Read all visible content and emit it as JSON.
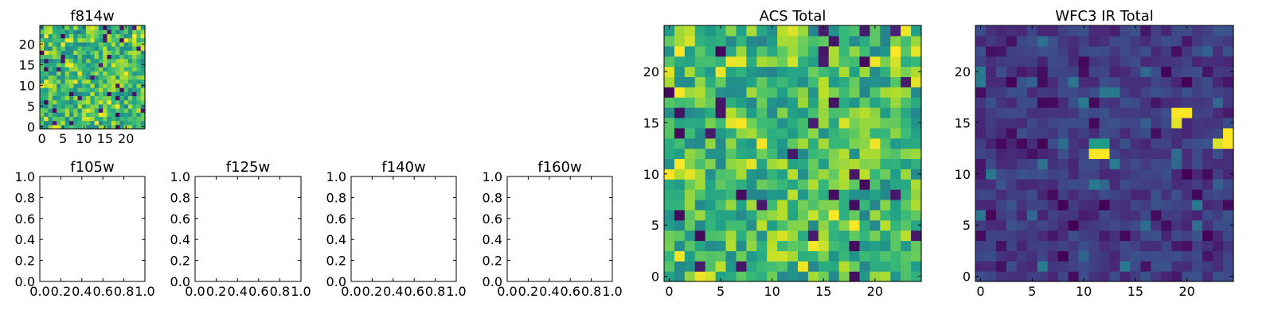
{
  "chart_data": [
    {
      "type": "heatmap",
      "title": "f814w",
      "x": {
        "ticks": [
          0,
          5,
          10,
          15,
          20
        ],
        "lim": [
          -0.5,
          24.5
        ]
      },
      "y": {
        "ticks": [
          0,
          5,
          10,
          15,
          20
        ],
        "lim": [
          -0.5,
          24.5
        ]
      },
      "shape": [
        25,
        25
      ],
      "colormap": "viridis",
      "pattern": "noise",
      "seed": 11,
      "vmin": 0,
      "vmax": 1,
      "hotspots": [],
      "grid": false
    },
    {
      "type": "empty",
      "title": "f105w",
      "x": {
        "ticks": [
          "0.0",
          "0.2",
          "0.4",
          "0.6",
          "0.8",
          "1.0"
        ],
        "lim": [
          0,
          1
        ]
      },
      "y": {
        "ticks": [
          "0.0",
          "0.2",
          "0.4",
          "0.6",
          "0.8",
          "1.0"
        ],
        "lim": [
          0,
          1
        ]
      }
    },
    {
      "type": "empty",
      "title": "f125w",
      "x": {
        "ticks": [
          "0.0",
          "0.2",
          "0.4",
          "0.6",
          "0.8",
          "1.0"
        ],
        "lim": [
          0,
          1
        ]
      },
      "y": {
        "ticks": [
          "0.0",
          "0.2",
          "0.4",
          "0.6",
          "0.8",
          "1.0"
        ],
        "lim": [
          0,
          1
        ]
      }
    },
    {
      "type": "empty",
      "title": "f140w",
      "x": {
        "ticks": [
          "0.0",
          "0.2",
          "0.4",
          "0.6",
          "0.8",
          "1.0"
        ],
        "lim": [
          0,
          1
        ]
      },
      "y": {
        "ticks": [
          "0.0",
          "0.2",
          "0.4",
          "0.6",
          "0.8",
          "1.0"
        ],
        "lim": [
          0,
          1
        ]
      }
    },
    {
      "type": "empty",
      "title": "f160w",
      "x": {
        "ticks": [
          "0.0",
          "0.2",
          "0.4",
          "0.6",
          "0.8",
          "1.0"
        ],
        "lim": [
          0,
          1
        ]
      },
      "y": {
        "ticks": [
          "0.0",
          "0.2",
          "0.4",
          "0.6",
          "0.8",
          "1.0"
        ],
        "lim": [
          0,
          1
        ]
      }
    },
    {
      "type": "heatmap",
      "title": "ACS Total",
      "x": {
        "ticks": [
          0,
          5,
          10,
          15,
          20
        ],
        "lim": [
          -0.5,
          24.5
        ]
      },
      "y": {
        "ticks": [
          0,
          5,
          10,
          15,
          20
        ],
        "lim": [
          -0.5,
          24.5
        ]
      },
      "shape": [
        25,
        25
      ],
      "colormap": "viridis",
      "pattern": "noise",
      "seed": 11,
      "vmin": 0,
      "vmax": 1,
      "hotspots": [],
      "grid": false
    },
    {
      "type": "heatmap",
      "title": "WFC3 IR Total",
      "x": {
        "ticks": [
          0,
          5,
          10,
          15,
          20
        ],
        "lim": [
          -0.5,
          24.5
        ]
      },
      "y": {
        "ticks": [
          0,
          5,
          10,
          15,
          20
        ],
        "lim": [
          -0.5,
          24.5
        ]
      },
      "shape": [
        25,
        25
      ],
      "colormap": "viridis",
      "pattern": "low-noise",
      "seed": 29,
      "vmin": 0,
      "vmax": 1,
      "hotspots": [
        {
          "col": 19,
          "row": 16,
          "value": 1.0
        },
        {
          "col": 20,
          "row": 16,
          "value": 1.0
        },
        {
          "col": 19,
          "row": 15,
          "value": 0.96
        },
        {
          "col": 11,
          "row": 13,
          "value": 0.55
        },
        {
          "col": 12,
          "row": 13,
          "value": 0.55
        },
        {
          "col": 11,
          "row": 12,
          "value": 1.0
        },
        {
          "col": 12,
          "row": 12,
          "value": 1.0
        },
        {
          "col": 24,
          "row": 14,
          "value": 1.0
        },
        {
          "col": 24,
          "row": 13,
          "value": 1.0
        },
        {
          "col": 23,
          "row": 13,
          "value": 0.95
        }
      ],
      "grid": false
    }
  ]
}
